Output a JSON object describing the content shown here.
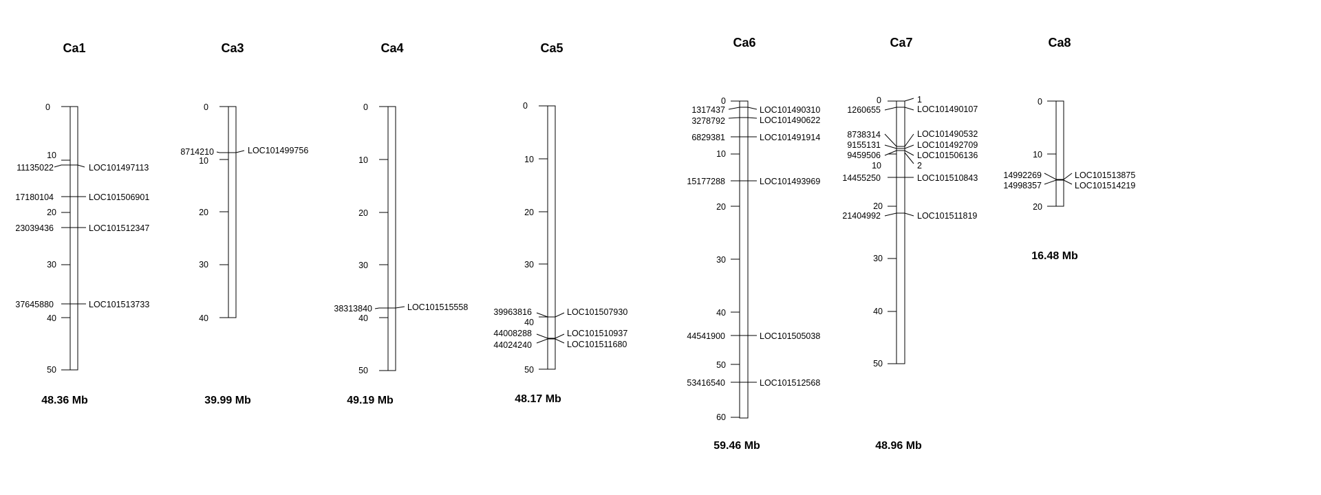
{
  "chromosomes": [
    {
      "name": "Ca1",
      "size_label": "48.36 Mb",
      "length_mb": 48.36,
      "ticks": [
        "0",
        "10",
        "20",
        "30",
        "40",
        "50"
      ],
      "loci": [
        {
          "pos": "11135022",
          "name": "LOC101497113"
        },
        {
          "pos": "17180104",
          "name": "LOC101506901"
        },
        {
          "pos": "23039436",
          "name": "LOC101512347"
        },
        {
          "pos": "37645880",
          "name": "LOC101513733"
        }
      ]
    },
    {
      "name": "Ca3",
      "size_label": "39.99 Mb",
      "length_mb": 39.99,
      "ticks": [
        "0",
        "10",
        "20",
        "30",
        "40"
      ],
      "loci": [
        {
          "pos": "8714210",
          "name": "LOC101499756"
        }
      ]
    },
    {
      "name": "Ca4",
      "size_label": "49.19 Mb",
      "length_mb": 49.19,
      "ticks": [
        "0",
        "10",
        "20",
        "30",
        "40",
        "50"
      ],
      "loci": [
        {
          "pos": "38313840",
          "name": "LOC101515558"
        }
      ]
    },
    {
      "name": "Ca5",
      "size_label": "48.17 Mb",
      "length_mb": 48.17,
      "ticks": [
        "0",
        "10",
        "20",
        "30",
        "40",
        "50"
      ],
      "loci": [
        {
          "pos": "39963816",
          "name": "LOC101507930"
        },
        {
          "pos": "44008288",
          "name": "LOC101510937"
        },
        {
          "pos": "44024240",
          "name": "LOC101511680"
        }
      ]
    },
    {
      "name": "Ca6",
      "size_label": "59.46 Mb",
      "length_mb": 59.46,
      "ticks": [
        "0",
        "10",
        "20",
        "30",
        "40",
        "50",
        "60"
      ],
      "loci": [
        {
          "pos": "1317437",
          "name": "LOC101490310"
        },
        {
          "pos": "3278792",
          "name": "LOC101490622"
        },
        {
          "pos": "6829381",
          "name": "LOC101491914"
        },
        {
          "pos": "15177288",
          "name": "LOC101493969"
        },
        {
          "pos": "44541900",
          "name": "LOC101505038"
        },
        {
          "pos": "53416540",
          "name": "LOC101512568"
        }
      ]
    },
    {
      "name": "Ca7",
      "size_label": "48.96 Mb",
      "length_mb": 48.96,
      "ticks": [
        "0",
        "10",
        "20",
        "30",
        "40",
        "50"
      ],
      "loci": [
        {
          "pos": "",
          "name": "1"
        },
        {
          "pos": "1260655",
          "name": "LOC101490107"
        },
        {
          "pos": "8738314",
          "name": "LOC101490532"
        },
        {
          "pos": "9155131",
          "name": "LOC101492709"
        },
        {
          "pos": "9459506",
          "name": "LOC101506136"
        },
        {
          "pos": "",
          "name": "2"
        },
        {
          "pos": "14455250",
          "name": "LOC101510843"
        },
        {
          "pos": "21404992",
          "name": "LOC101511819"
        }
      ]
    },
    {
      "name": "Ca8",
      "size_label": "16.48 Mb",
      "length_mb": 16.48,
      "ticks": [
        "0",
        "10",
        "20"
      ],
      "loci": [
        {
          "pos": "14992269",
          "name": "LOC101513875"
        },
        {
          "pos": "14998357",
          "name": "LOC101514219"
        }
      ]
    }
  ]
}
